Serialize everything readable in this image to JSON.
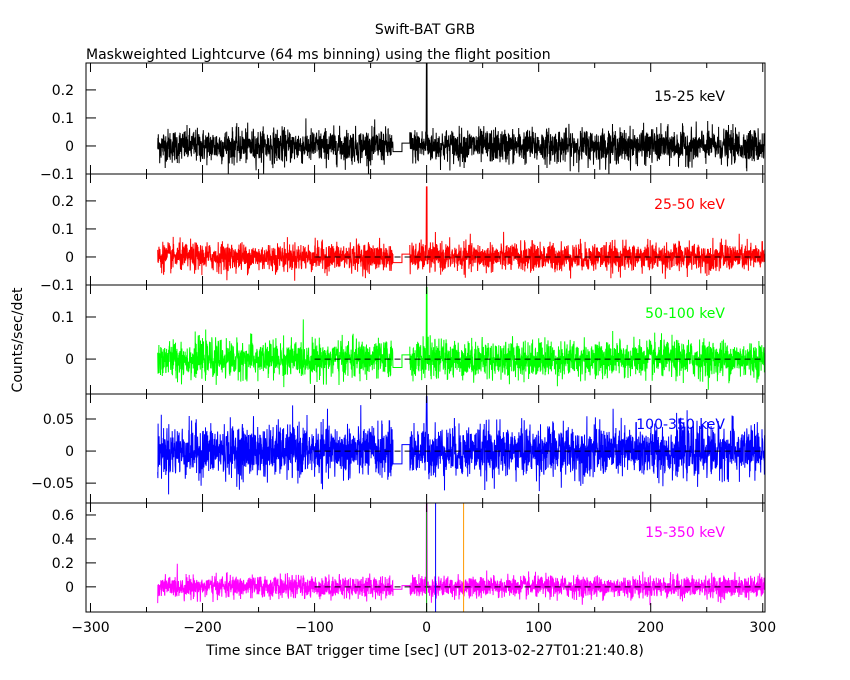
{
  "chart_data": {
    "type": "line",
    "title": "Swift-BAT GRB",
    "subtitle": "Maskweighted Lightcurve (64 ms binning) using the flight position",
    "xlabel": "Time since BAT trigger time [sec] (UT 2013-02-27T01:21:40.8)",
    "ylabel": "Counts/sec/det",
    "xlim": [
      -304,
      302
    ],
    "xticks": [
      "-300",
      "-200",
      "-100",
      "0",
      "100",
      "200",
      "300"
    ],
    "xtick_values": [
      -300,
      -200,
      -100,
      0,
      100,
      200,
      300
    ],
    "grid": false,
    "data_interval": [
      -240,
      302
    ],
    "gap_interval": [
      -30,
      -15
    ],
    "panels": [
      {
        "label": "15-25 keV",
        "color": "#000000",
        "ylim": [
          -0.1,
          0.296
        ],
        "yticks": [
          -0.1,
          0,
          0.1,
          0.2
        ],
        "ytick_labels": [
          "-0.1",
          "0",
          "0.1",
          "0.2"
        ],
        "noise_sigma": 0.03,
        "peak_at_0": 0.3,
        "dashed_zero": false
      },
      {
        "label": "25-50 keV",
        "color": "#ff0000",
        "ylim": [
          -0.1,
          0.296
        ],
        "yticks": [
          -0.1,
          0,
          0.1,
          0.2
        ],
        "ytick_labels": [
          "-0.1",
          "0",
          "0.1",
          "0.2"
        ],
        "noise_sigma": 0.025,
        "peak_at_0": 0.25,
        "dashed_zero": true
      },
      {
        "label": "50-100 keV",
        "color": "#00ff00",
        "ylim": [
          -0.083,
          0.176
        ],
        "yticks": [
          0,
          0.1
        ],
        "ytick_labels": [
          "0",
          "0.1"
        ],
        "noise_sigma": 0.022,
        "peak_at_0": 0.17,
        "dashed_zero": true
      },
      {
        "label": "100-350 keV",
        "color": "#0000ff",
        "ylim": [
          -0.081,
          0.089
        ],
        "yticks": [
          -0.05,
          0,
          0.05
        ],
        "ytick_labels": [
          "-0.05",
          "0",
          "0.05"
        ],
        "noise_sigma": 0.02,
        "peak_at_0": 0.085,
        "dashed_zero": true
      },
      {
        "label": "15-350 keV",
        "color": "#ff00ff",
        "ylim": [
          -0.21,
          0.7
        ],
        "yticks": [
          0,
          0.2,
          0.4,
          0.6
        ],
        "ytick_labels": [
          "0",
          "0.2",
          "0.4",
          "0.6"
        ],
        "noise_sigma": 0.045,
        "peak_at_0": 0.7,
        "dashed_zero": true,
        "markers": [
          {
            "x": 0,
            "color": "#00aa00"
          },
          {
            "x": 8,
            "color": "#0000ff"
          },
          {
            "x": 33,
            "color": "#ff9900"
          }
        ]
      }
    ]
  }
}
